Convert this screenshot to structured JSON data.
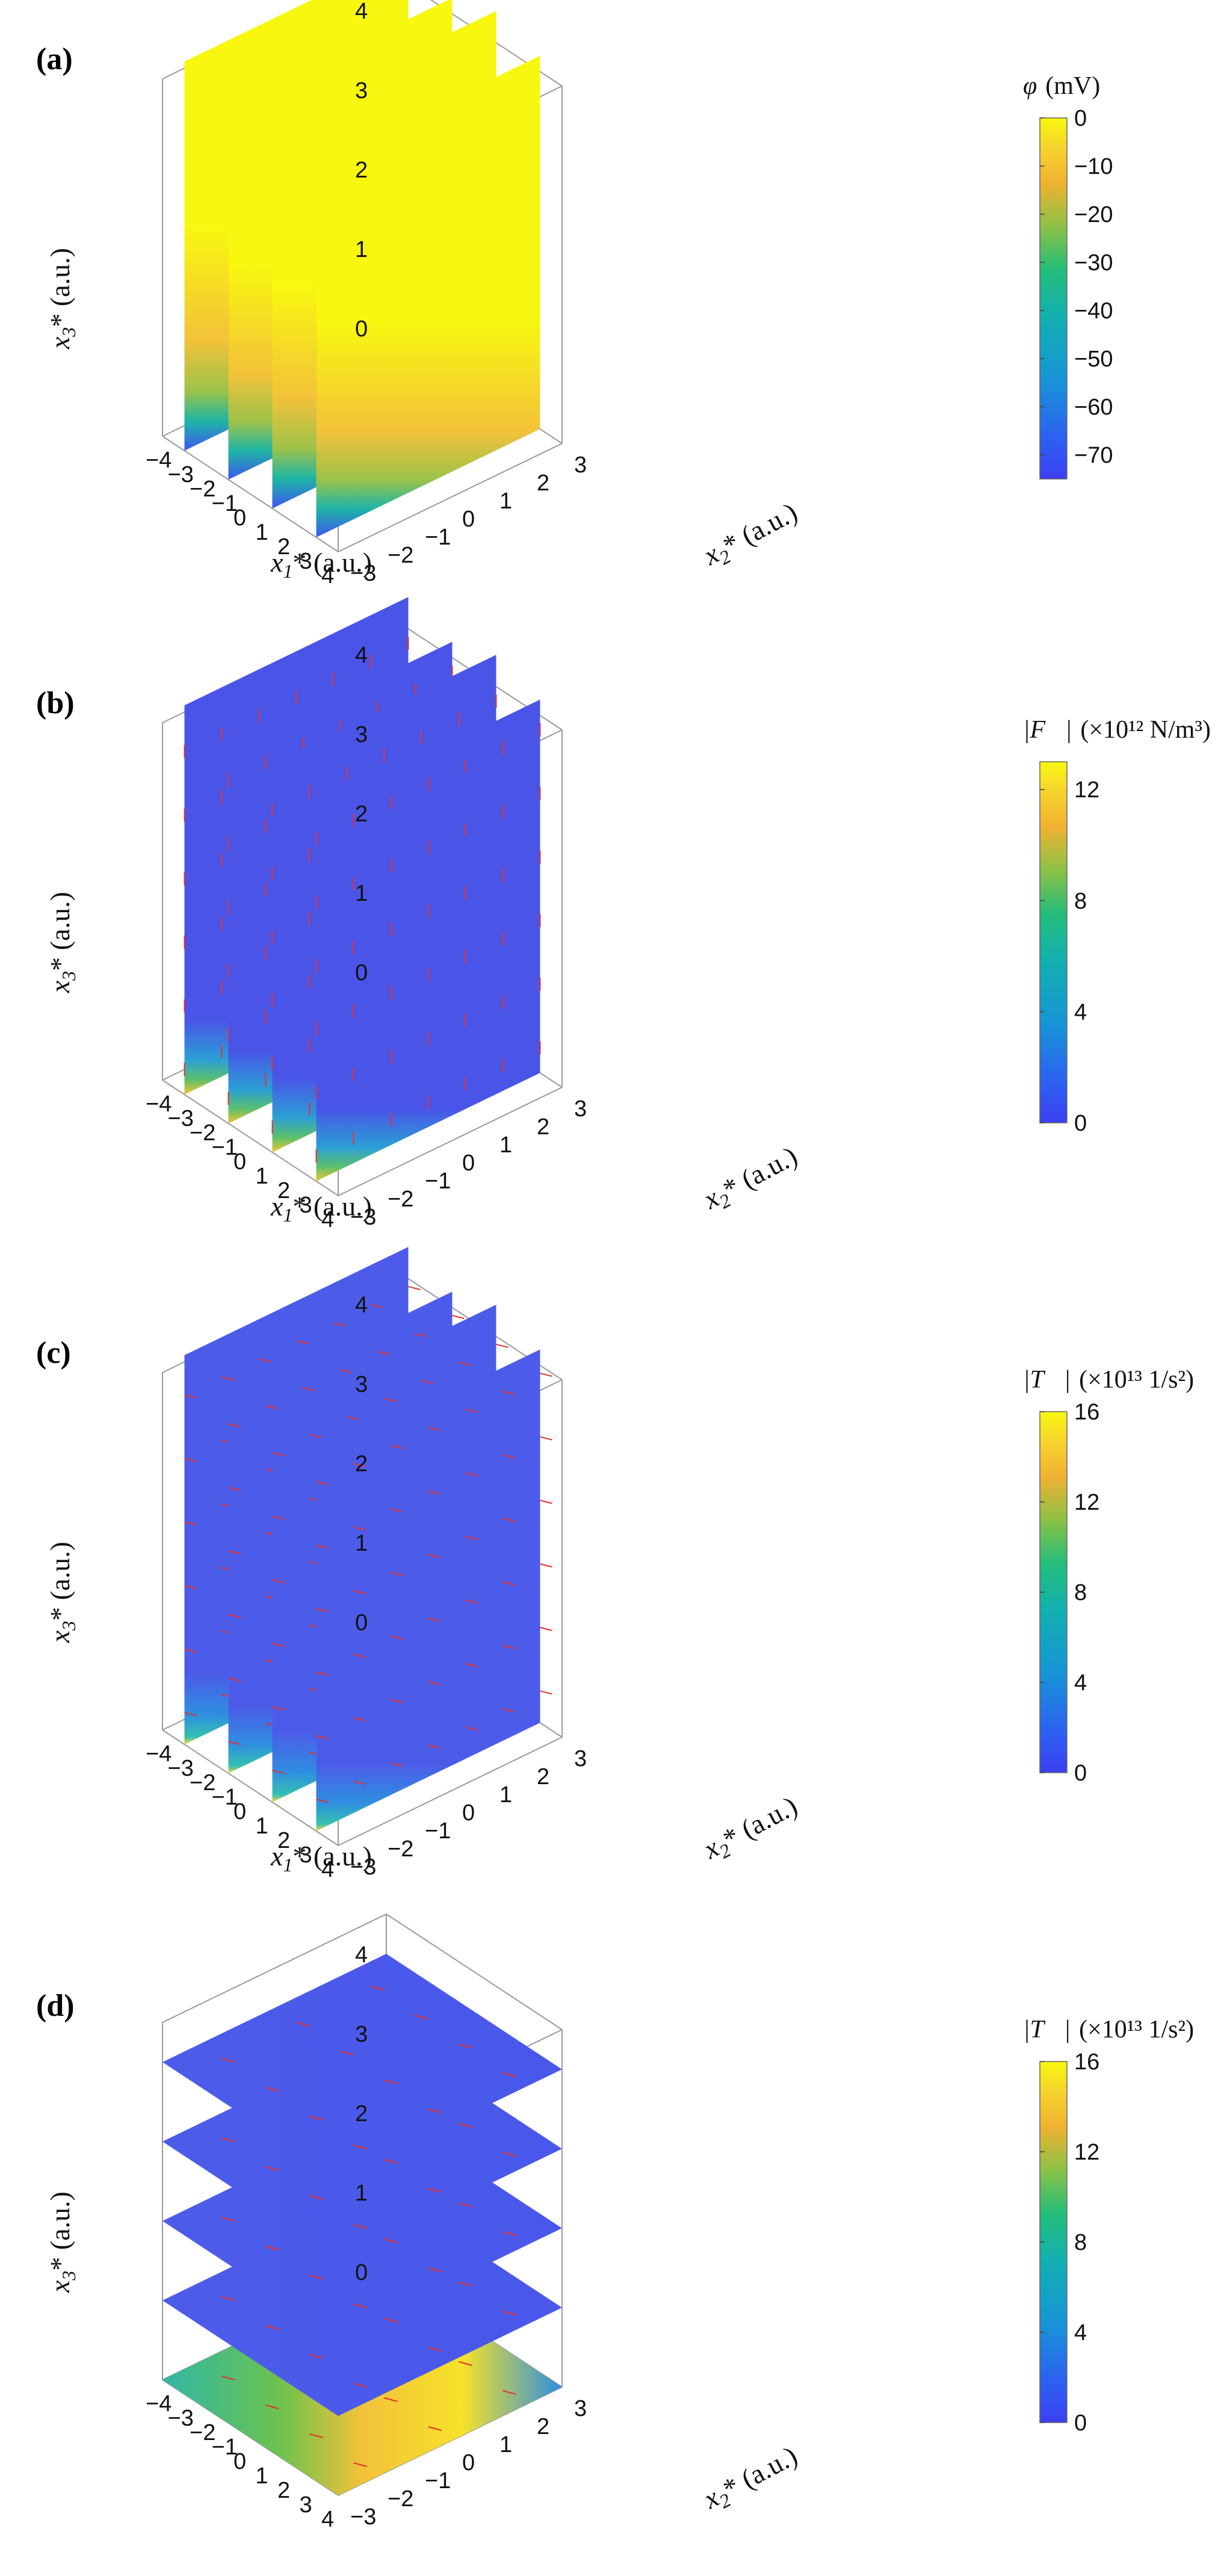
{
  "chart_data": [
    {
      "type": "surface3d",
      "panel_label": "(a)",
      "slice_orientation": "vertical",
      "quiver": false,
      "slices_at": [
        -3,
        -1,
        1,
        3
      ],
      "xlabel": "x1* (a.u.)",
      "ylabel": "x2* (a.u.)",
      "zlabel": "x3* (a.u.)",
      "xlabel_main": "x",
      "xlabel_sub": "1",
      "xlabel_suffix": "* (a.u.)",
      "ylabel_main": "x",
      "ylabel_sub": "2",
      "ylabel_suffix": "* (a.u.)",
      "zlabel_main": "x",
      "zlabel_sub": "3",
      "zlabel_suffix": "* (a.u.)",
      "xlim": [
        -4,
        4
      ],
      "ylim": [
        -3,
        3
      ],
      "zlim": [
        0,
        4.5
      ],
      "xticks": [
        "−4",
        "−3",
        "−2",
        "−1",
        "0",
        "1",
        "2",
        "3",
        "4"
      ],
      "yticks": [
        "−3",
        "−2",
        "−1",
        "0",
        "1",
        "2",
        "3"
      ],
      "zticks": [
        "0",
        "1",
        "2",
        "3",
        "4"
      ],
      "colorbar": {
        "title_sym": "φ",
        "title_unit": "(mV)",
        "range": [
          -75,
          0
        ],
        "ticks": [
          "0",
          "−10",
          "−20",
          "−30",
          "−40",
          "−50",
          "−60",
          "−70"
        ],
        "tick_values": [
          0,
          -10,
          -20,
          -30,
          -40,
          -50,
          -60,
          -70
        ]
      }
    },
    {
      "type": "surface3d",
      "panel_label": "(b)",
      "slice_orientation": "vertical",
      "quiver": true,
      "slices_at": [
        -3,
        -1,
        1,
        3
      ],
      "xlabel": "x1* (a.u.)",
      "ylabel": "x2* (a.u.)",
      "zlabel": "x3* (a.u.)",
      "xlabel_main": "x",
      "xlabel_sub": "1",
      "xlabel_suffix": "* (a.u.)",
      "ylabel_main": "x",
      "ylabel_sub": "2",
      "ylabel_suffix": "* (a.u.)",
      "zlabel_main": "x",
      "zlabel_sub": "3",
      "zlabel_suffix": "* (a.u.)",
      "xlim": [
        -4,
        4
      ],
      "ylim": [
        -3,
        3
      ],
      "zlim": [
        0,
        4.5
      ],
      "xticks": [
        "−4",
        "−3",
        "−2",
        "−1",
        "0",
        "1",
        "2",
        "3",
        "4"
      ],
      "yticks": [
        "−3",
        "−2",
        "−1",
        "0",
        "1",
        "2",
        "3"
      ],
      "zticks": [
        "0",
        "1",
        "2",
        "3",
        "4"
      ],
      "colorbar": {
        "title_sym": "|F⃗|",
        "title_unit": "(×10¹² N/m³)",
        "range": [
          0,
          13
        ],
        "ticks": [
          "12",
          "8",
          "4",
          "0"
        ],
        "tick_values": [
          12,
          8,
          4,
          0
        ]
      }
    },
    {
      "type": "surface3d",
      "panel_label": "(c)",
      "slice_orientation": "vertical",
      "quiver": true,
      "slices_at": [
        -3,
        -1,
        1,
        3
      ],
      "xlabel": "x1* (a.u.)",
      "ylabel": "x2* (a.u.)",
      "zlabel": "x3* (a.u.)",
      "xlabel_main": "x",
      "xlabel_sub": "1",
      "xlabel_suffix": "* (a.u.)",
      "ylabel_main": "x",
      "ylabel_sub": "2",
      "ylabel_suffix": "* (a.u.)",
      "zlabel_main": "x",
      "zlabel_sub": "3",
      "zlabel_suffix": "* (a.u.)",
      "xlim": [
        -4,
        4
      ],
      "ylim": [
        -3,
        3
      ],
      "zlim": [
        0,
        4.5
      ],
      "xticks": [
        "−4",
        "−3",
        "−2",
        "−1",
        "0",
        "1",
        "2",
        "3",
        "4"
      ],
      "yticks": [
        "−3",
        "−2",
        "−1",
        "0",
        "1",
        "2",
        "3"
      ],
      "zticks": [
        "0",
        "1",
        "2",
        "3",
        "4"
      ],
      "colorbar": {
        "title_sym": "|T⃗|",
        "title_unit": "(×10¹³ 1/s²)",
        "range": [
          0,
          16
        ],
        "ticks": [
          "16",
          "12",
          "8",
          "4",
          "0"
        ],
        "tick_values": [
          16,
          12,
          8,
          4,
          0
        ]
      }
    },
    {
      "type": "surface3d",
      "panel_label": "(d)",
      "slice_orientation": "horizontal",
      "quiver": true,
      "slices_at": [
        0,
        1,
        2,
        3,
        4
      ],
      "xlabel": "",
      "ylabel": "x2* (a.u.)",
      "zlabel": "x3* (a.u.)",
      "xlabel_main": "",
      "xlabel_sub": "",
      "xlabel_suffix": "",
      "ylabel_main": "x",
      "ylabel_sub": "2",
      "ylabel_suffix": "* (a.u.)",
      "zlabel_main": "x",
      "zlabel_sub": "3",
      "zlabel_suffix": "* (a.u.)",
      "xlim": [
        -4,
        4
      ],
      "ylim": [
        -3,
        3
      ],
      "zlim": [
        0,
        4.5
      ],
      "xticks": [
        "−4",
        "−3",
        "−2",
        "−1",
        "0",
        "1",
        "2",
        "3",
        "4"
      ],
      "yticks": [
        "−3",
        "−2",
        "−1",
        "0",
        "1",
        "2",
        "3"
      ],
      "zticks": [
        "0",
        "1",
        "2",
        "3",
        "4"
      ],
      "colorbar": {
        "title_sym": "|T⃗|",
        "title_unit": "(×10¹³ 1/s²)",
        "range": [
          0,
          16
        ],
        "ticks": [
          "16",
          "12",
          "8",
          "4",
          "0"
        ],
        "tick_values": [
          16,
          12,
          8,
          4,
          0
        ]
      }
    }
  ]
}
